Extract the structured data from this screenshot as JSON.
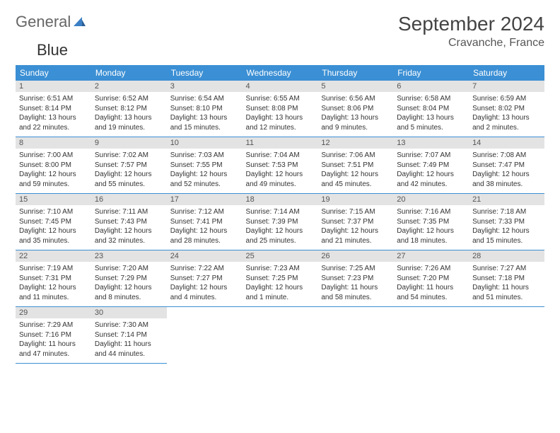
{
  "logo": {
    "part1": "General",
    "part2": "Blue"
  },
  "title": "September 2024",
  "location": "Cravanche, France",
  "colors": {
    "header_bg": "#3b8fd4",
    "header_text": "#ffffff",
    "daynum_bg": "#e3e3e3",
    "row_border": "#3b8fd4",
    "logo_accent": "#3b7fc4"
  },
  "day_headers": [
    "Sunday",
    "Monday",
    "Tuesday",
    "Wednesday",
    "Thursday",
    "Friday",
    "Saturday"
  ],
  "weeks": [
    [
      {
        "n": "1",
        "sr": "Sunrise: 6:51 AM",
        "ss": "Sunset: 8:14 PM",
        "dl": "Daylight: 13 hours and 22 minutes."
      },
      {
        "n": "2",
        "sr": "Sunrise: 6:52 AM",
        "ss": "Sunset: 8:12 PM",
        "dl": "Daylight: 13 hours and 19 minutes."
      },
      {
        "n": "3",
        "sr": "Sunrise: 6:54 AM",
        "ss": "Sunset: 8:10 PM",
        "dl": "Daylight: 13 hours and 15 minutes."
      },
      {
        "n": "4",
        "sr": "Sunrise: 6:55 AM",
        "ss": "Sunset: 8:08 PM",
        "dl": "Daylight: 13 hours and 12 minutes."
      },
      {
        "n": "5",
        "sr": "Sunrise: 6:56 AM",
        "ss": "Sunset: 8:06 PM",
        "dl": "Daylight: 13 hours and 9 minutes."
      },
      {
        "n": "6",
        "sr": "Sunrise: 6:58 AM",
        "ss": "Sunset: 8:04 PM",
        "dl": "Daylight: 13 hours and 5 minutes."
      },
      {
        "n": "7",
        "sr": "Sunrise: 6:59 AM",
        "ss": "Sunset: 8:02 PM",
        "dl": "Daylight: 13 hours and 2 minutes."
      }
    ],
    [
      {
        "n": "8",
        "sr": "Sunrise: 7:00 AM",
        "ss": "Sunset: 8:00 PM",
        "dl": "Daylight: 12 hours and 59 minutes."
      },
      {
        "n": "9",
        "sr": "Sunrise: 7:02 AM",
        "ss": "Sunset: 7:57 PM",
        "dl": "Daylight: 12 hours and 55 minutes."
      },
      {
        "n": "10",
        "sr": "Sunrise: 7:03 AM",
        "ss": "Sunset: 7:55 PM",
        "dl": "Daylight: 12 hours and 52 minutes."
      },
      {
        "n": "11",
        "sr": "Sunrise: 7:04 AM",
        "ss": "Sunset: 7:53 PM",
        "dl": "Daylight: 12 hours and 49 minutes."
      },
      {
        "n": "12",
        "sr": "Sunrise: 7:06 AM",
        "ss": "Sunset: 7:51 PM",
        "dl": "Daylight: 12 hours and 45 minutes."
      },
      {
        "n": "13",
        "sr": "Sunrise: 7:07 AM",
        "ss": "Sunset: 7:49 PM",
        "dl": "Daylight: 12 hours and 42 minutes."
      },
      {
        "n": "14",
        "sr": "Sunrise: 7:08 AM",
        "ss": "Sunset: 7:47 PM",
        "dl": "Daylight: 12 hours and 38 minutes."
      }
    ],
    [
      {
        "n": "15",
        "sr": "Sunrise: 7:10 AM",
        "ss": "Sunset: 7:45 PM",
        "dl": "Daylight: 12 hours and 35 minutes."
      },
      {
        "n": "16",
        "sr": "Sunrise: 7:11 AM",
        "ss": "Sunset: 7:43 PM",
        "dl": "Daylight: 12 hours and 32 minutes."
      },
      {
        "n": "17",
        "sr": "Sunrise: 7:12 AM",
        "ss": "Sunset: 7:41 PM",
        "dl": "Daylight: 12 hours and 28 minutes."
      },
      {
        "n": "18",
        "sr": "Sunrise: 7:14 AM",
        "ss": "Sunset: 7:39 PM",
        "dl": "Daylight: 12 hours and 25 minutes."
      },
      {
        "n": "19",
        "sr": "Sunrise: 7:15 AM",
        "ss": "Sunset: 7:37 PM",
        "dl": "Daylight: 12 hours and 21 minutes."
      },
      {
        "n": "20",
        "sr": "Sunrise: 7:16 AM",
        "ss": "Sunset: 7:35 PM",
        "dl": "Daylight: 12 hours and 18 minutes."
      },
      {
        "n": "21",
        "sr": "Sunrise: 7:18 AM",
        "ss": "Sunset: 7:33 PM",
        "dl": "Daylight: 12 hours and 15 minutes."
      }
    ],
    [
      {
        "n": "22",
        "sr": "Sunrise: 7:19 AM",
        "ss": "Sunset: 7:31 PM",
        "dl": "Daylight: 12 hours and 11 minutes."
      },
      {
        "n": "23",
        "sr": "Sunrise: 7:20 AM",
        "ss": "Sunset: 7:29 PM",
        "dl": "Daylight: 12 hours and 8 minutes."
      },
      {
        "n": "24",
        "sr": "Sunrise: 7:22 AM",
        "ss": "Sunset: 7:27 PM",
        "dl": "Daylight: 12 hours and 4 minutes."
      },
      {
        "n": "25",
        "sr": "Sunrise: 7:23 AM",
        "ss": "Sunset: 7:25 PM",
        "dl": "Daylight: 12 hours and 1 minute."
      },
      {
        "n": "26",
        "sr": "Sunrise: 7:25 AM",
        "ss": "Sunset: 7:23 PM",
        "dl": "Daylight: 11 hours and 58 minutes."
      },
      {
        "n": "27",
        "sr": "Sunrise: 7:26 AM",
        "ss": "Sunset: 7:20 PM",
        "dl": "Daylight: 11 hours and 54 minutes."
      },
      {
        "n": "28",
        "sr": "Sunrise: 7:27 AM",
        "ss": "Sunset: 7:18 PM",
        "dl": "Daylight: 11 hours and 51 minutes."
      }
    ],
    [
      {
        "n": "29",
        "sr": "Sunrise: 7:29 AM",
        "ss": "Sunset: 7:16 PM",
        "dl": "Daylight: 11 hours and 47 minutes."
      },
      {
        "n": "30",
        "sr": "Sunrise: 7:30 AM",
        "ss": "Sunset: 7:14 PM",
        "dl": "Daylight: 11 hours and 44 minutes."
      },
      null,
      null,
      null,
      null,
      null
    ]
  ]
}
